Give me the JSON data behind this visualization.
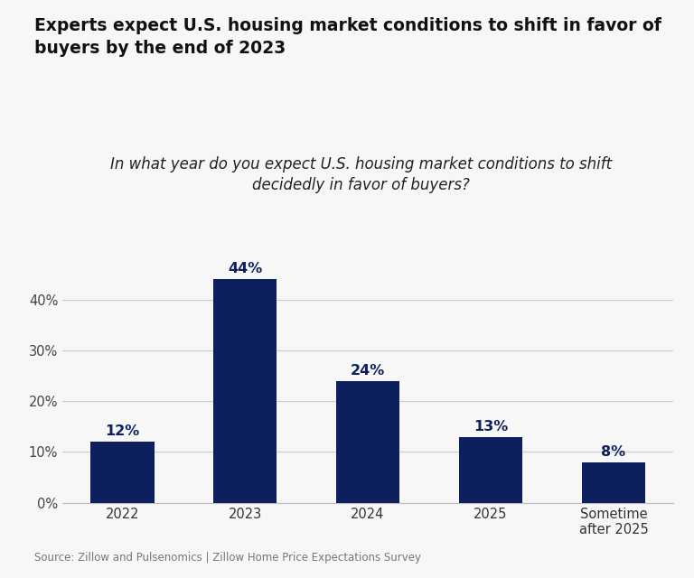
{
  "title": "Experts expect U.S. housing market conditions to shift in favor of\nbuyers by the end of 2023",
  "subtitle": "In what year do you expect U.S. housing market conditions to shift\ndecidedly in favor of buyers?",
  "source": "Source: Zillow and Pulsenomics | Zillow Home Price Expectations Survey",
  "categories": [
    "2022",
    "2023",
    "2024",
    "2025",
    "Sometime\nafter 2025"
  ],
  "values": [
    12,
    44,
    24,
    13,
    8
  ],
  "bar_color": "#0d1f5c",
  "label_color": "#0d1f5c",
  "background_color": "#f7f7f7",
  "ylim": [
    0,
    50
  ],
  "yticks": [
    0,
    10,
    20,
    30,
    40
  ],
  "ytick_labels": [
    "0%",
    "10%",
    "20%",
    "30%",
    "40%"
  ],
  "title_fontsize": 13.5,
  "subtitle_fontsize": 12,
  "source_fontsize": 8.5,
  "bar_label_fontsize": 11.5
}
